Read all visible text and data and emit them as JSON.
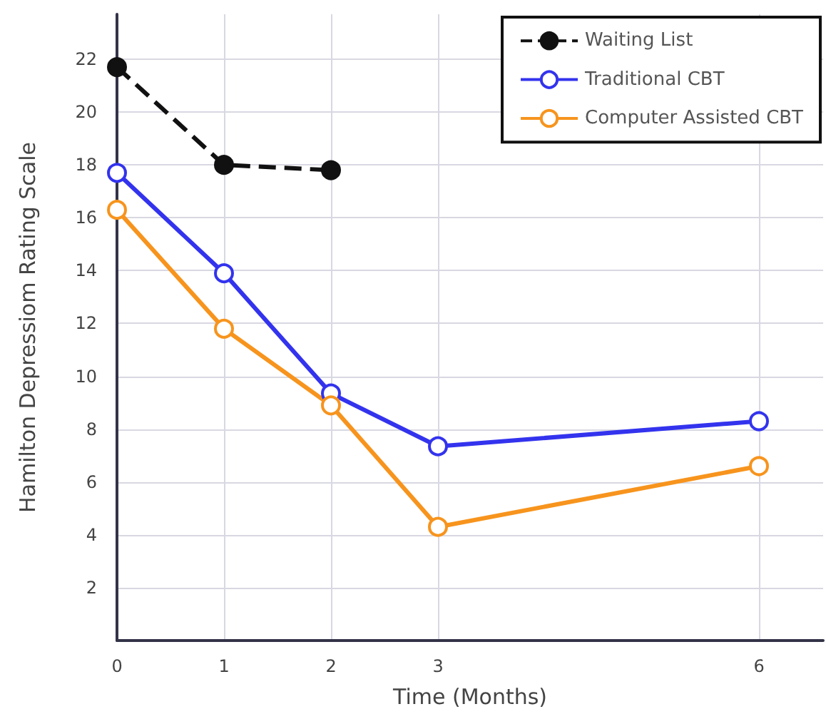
{
  "chart_data": {
    "type": "line",
    "xlabel": "Time (Months)",
    "ylabel": "Hamilton Depressiom Rating Scale",
    "x": [
      0,
      1,
      2,
      3,
      6
    ],
    "series": [
      {
        "name": "Waiting List",
        "color": "#111111",
        "line_style": "dashed",
        "x": [
          0,
          1,
          2
        ],
        "values": [
          21.7,
          18.0,
          17.8
        ]
      },
      {
        "name": "Traditional CBT",
        "color": "#3333ee",
        "values": [
          17.7,
          13.9,
          9.35,
          7.35,
          8.3
        ]
      },
      {
        "name": "Computer Assisted CBT",
        "color": "#f7941d",
        "values": [
          16.3,
          11.8,
          8.9,
          4.3,
          6.6
        ]
      }
    ],
    "xlim": [
      0,
      6.6
    ],
    "xticks": [
      0,
      1,
      2,
      3,
      6
    ],
    "ylim": [
      0,
      23.7
    ],
    "yticks": [
      2,
      4,
      6,
      8,
      10,
      12,
      14,
      16,
      18,
      20,
      22
    ],
    "grid": true,
    "legend": "top right",
    "marker": "circle",
    "line_style": "solid"
  }
}
